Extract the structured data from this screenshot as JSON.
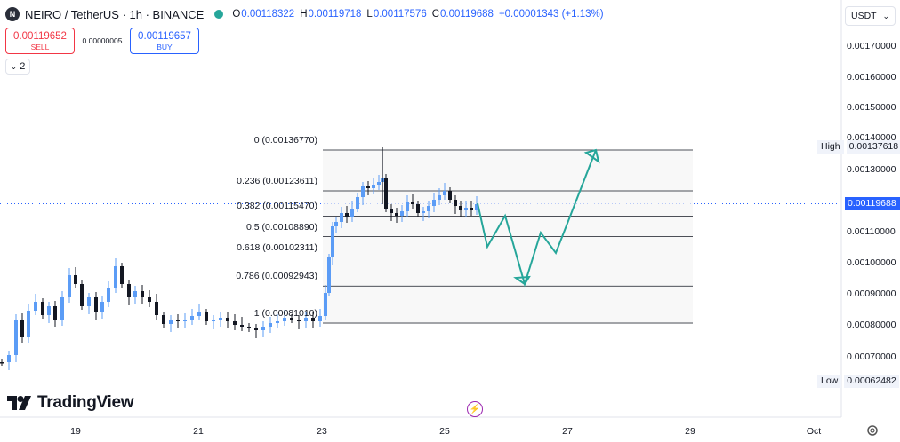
{
  "header": {
    "symbol_logo": "N",
    "symbol": "NEIRO / TetherUS · 1h · BINANCE",
    "ohlc": [
      {
        "key": "O",
        "value": "0.00118322"
      },
      {
        "key": "H",
        "value": "0.00119718"
      },
      {
        "key": "L",
        "value": "0.00117576"
      },
      {
        "key": "C",
        "value": "0.00119688"
      }
    ],
    "change": "+0.00001343 (+1.13%)"
  },
  "trade": {
    "sell_price": "0.00119652",
    "sell_label": "SELL",
    "spread": "0.00000005",
    "buy_price": "0.00119657",
    "buy_label": "BUY"
  },
  "indicators_count": "2",
  "currency": "USDT",
  "brand": "TradingView",
  "price_axis": {
    "ticks": [
      "0.00170000",
      "0.00160000",
      "0.00150000",
      "0.00140000",
      "0.00130000",
      "0.00110000",
      "0.00100000",
      "0.00090000",
      "0.00080000",
      "0.00070000"
    ],
    "high_label": "High",
    "high_value": "0.00137618",
    "low_label": "Low",
    "low_value": "0.00062482",
    "last_price": "0.00119688"
  },
  "time_axis": [
    "19",
    "21",
    "23",
    "25",
    "27",
    "29",
    "Oct"
  ],
  "fib_levels": [
    {
      "label": "0 (0.00136770)",
      "ratio": 0,
      "price": 0.0013677
    },
    {
      "label": "0.236 (0.00123611)",
      "ratio": 0.236,
      "price": 0.00123611
    },
    {
      "label": "0.382 (0.00115470)",
      "ratio": 0.382,
      "price": 0.0011547
    },
    {
      "label": "0.5 (0.00108890)",
      "ratio": 0.5,
      "price": 0.0010889
    },
    {
      "label": "0.618 (0.00102311)",
      "ratio": 0.618,
      "price": 0.00102311
    },
    {
      "label": "0.786 (0.00092943)",
      "ratio": 0.786,
      "price": 0.00092943
    },
    {
      "label": "1 (0.00081010)",
      "ratio": 1,
      "price": 0.0008101
    }
  ],
  "colors": {
    "up": "#5b9cf6",
    "down": "#131722",
    "projection": "#26a69a",
    "accent": "#2962ff",
    "sell": "#f23645"
  }
}
